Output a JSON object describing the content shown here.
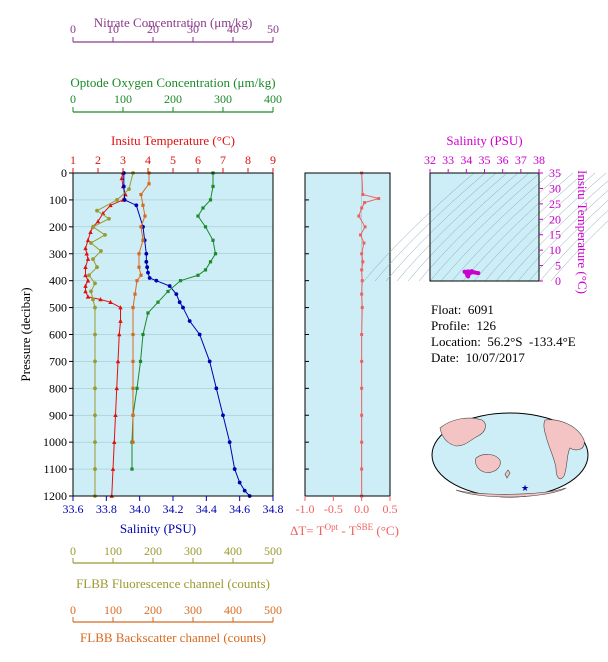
{
  "colors": {
    "nitrate": "#8b3a8b",
    "oxygen": "#1a8a2a",
    "temperature": "#e01010",
    "salinity": "#0000b0",
    "fluorescence": "#9a9a30",
    "backscatter": "#d86a20",
    "dt": "#f06060",
    "ts_axis": "#cc00cc",
    "panel_bg": "#cdeef6",
    "map_land": "#f4c4c4"
  },
  "info": {
    "float": "Float:  6091",
    "profile": "Profile:  126",
    "location": "Location:  56.2°S  -133.4°E",
    "date": "Date:  10/07/2017"
  },
  "chart_data": [
    {
      "type": "line",
      "panel": "main-profile",
      "ylabel": "Pressure (decibar)",
      "ylim": [
        1200,
        0
      ],
      "yticks": [
        0,
        100,
        200,
        300,
        400,
        500,
        600,
        700,
        800,
        900,
        1000,
        1100,
        1200
      ],
      "axes": [
        {
          "key": "nitrate",
          "label": "Nitrate Concentration (μm/kg)",
          "lim": [
            0,
            50
          ],
          "ticks": [
            "0",
            "10",
            "20",
            "30",
            "40",
            "50"
          ],
          "color": "#8b3a8b"
        },
        {
          "key": "oxygen",
          "label": "Optode Oxygen Concentration (μm/kg)",
          "lim": [
            0,
            400
          ],
          "ticks": [
            "0",
            "100",
            "200",
            "300",
            "400"
          ],
          "color": "#1a8a2a"
        },
        {
          "key": "temperature",
          "label": "Insitu Temperature (°C)",
          "lim": [
            1,
            9
          ],
          "ticks": [
            "1",
            "2",
            "3",
            "4",
            "5",
            "6",
            "7",
            "8",
            "9"
          ],
          "color": "#e01010"
        },
        {
          "key": "salinity",
          "label": "Salinity (PSU)",
          "lim": [
            33.6,
            34.8
          ],
          "ticks": [
            "33.6",
            "33.8",
            "34.0",
            "34.2",
            "34.4",
            "34.6",
            "34.8"
          ],
          "color": "#0000b0"
        },
        {
          "key": "fluorescence",
          "label": "FLBB Fluorescence channel (counts)",
          "lim": [
            0,
            500
          ],
          "ticks": [
            "0",
            "100",
            "200",
            "300",
            "400",
            "500"
          ],
          "color": "#9a9a30"
        },
        {
          "key": "backscatter",
          "label": "FLBB Backscatter channel (counts)",
          "lim": [
            0,
            500
          ],
          "ticks": [
            "0",
            "100",
            "200",
            "300",
            "400",
            "500"
          ],
          "color": "#d86a20"
        }
      ],
      "series": [
        {
          "key": "temperature",
          "x": [
            3.0,
            2.95,
            3.0,
            3.1,
            3.0,
            2.5,
            2.2,
            2.0,
            1.8,
            1.7,
            1.6,
            1.5,
            1.55,
            1.6,
            1.5,
            1.5,
            1.6,
            1.5,
            1.5,
            1.6,
            2.1,
            2.5,
            2.9,
            2.9,
            2.85,
            2.8,
            2.75,
            2.7,
            2.65,
            2.6,
            2.55
          ],
          "y": [
            0,
            20,
            50,
            80,
            100,
            120,
            150,
            180,
            200,
            220,
            250,
            280,
            300,
            320,
            350,
            380,
            400,
            420,
            440,
            460,
            470,
            480,
            500,
            550,
            600,
            700,
            800,
            900,
            1000,
            1100,
            1200
          ]
        },
        {
          "key": "salinity",
          "x": [
            33.905,
            33.905,
            33.91,
            33.98,
            34.02,
            34.03,
            34.04,
            34.04,
            34.045,
            34.05,
            34.06,
            34.1,
            34.18,
            34.22,
            34.24,
            34.26,
            34.3,
            34.36,
            34.42,
            34.46,
            34.5,
            34.54,
            34.57,
            34.6,
            34.63,
            34.66
          ],
          "y": [
            0,
            50,
            100,
            120,
            200,
            250,
            300,
            330,
            350,
            370,
            390,
            400,
            420,
            450,
            480,
            500,
            550,
            600,
            700,
            800,
            900,
            1000,
            1100,
            1150,
            1180,
            1200
          ]
        },
        {
          "key": "oxygen",
          "x": [
            280,
            280,
            275,
            260,
            250,
            265,
            280,
            285,
            275,
            265,
            250,
            215,
            190,
            170,
            150,
            140,
            135,
            128,
            120,
            118,
            118
          ],
          "y": [
            0,
            50,
            100,
            130,
            160,
            200,
            250,
            300,
            330,
            360,
            380,
            400,
            440,
            480,
            520,
            600,
            700,
            800,
            900,
            1000,
            1100
          ]
        },
        {
          "key": "fluorescence",
          "x": [
            150,
            140,
            110,
            60,
            90,
            50,
            80,
            45,
            70,
            50,
            60,
            40,
            55,
            45,
            50,
            55,
            55,
            55,
            55,
            55,
            55,
            55,
            55
          ],
          "y": [
            0,
            60,
            100,
            140,
            170,
            200,
            230,
            260,
            290,
            320,
            350,
            380,
            410,
            440,
            470,
            500,
            600,
            700,
            800,
            900,
            1000,
            1100,
            1200
          ]
        },
        {
          "key": "backscatter",
          "x": [
            190,
            190,
            170,
            175,
            180,
            170,
            175,
            165,
            165,
            170,
            160,
            155,
            150,
            150,
            150,
            150,
            150,
            150
          ],
          "y": [
            0,
            40,
            80,
            120,
            160,
            200,
            250,
            300,
            350,
            380,
            400,
            450,
            500,
            600,
            700,
            800,
            900,
            1000
          ]
        }
      ]
    },
    {
      "type": "line",
      "panel": "delta-t",
      "xlabel_parts": [
        "ΔT= T",
        "Opt",
        " - T",
        "SBE",
        " (°C)"
      ],
      "xlim": [
        -1.0,
        0.5
      ],
      "xticks": [
        "-1.0",
        "-0.5",
        "0.0",
        "0.5"
      ],
      "x": [
        0.0,
        0.02,
        0.3,
        0.05,
        0.0,
        -0.05,
        0.06,
        -0.02,
        0.04,
        0.0,
        0.02,
        0.0,
        0.01,
        0.0,
        0.01,
        0.0,
        0.0,
        0.0,
        0.0,
        0.0,
        0.0,
        0.0
      ],
      "y": [
        0,
        80,
        95,
        110,
        130,
        160,
        200,
        230,
        260,
        300,
        330,
        360,
        400,
        450,
        500,
        600,
        700,
        800,
        900,
        1000,
        1100,
        1200
      ]
    },
    {
      "type": "scatter",
      "panel": "ts-diagram",
      "xlabel": "Salinity (PSU)",
      "ylabel": "Insitu Temperature (°C)",
      "xlim": [
        32,
        38
      ],
      "ylim": [
        0,
        35
      ],
      "xticks": [
        "32",
        "33",
        "34",
        "35",
        "36",
        "37",
        "38"
      ],
      "yticks": [
        "0",
        "5",
        "10",
        "15",
        "20",
        "25",
        "30",
        "35"
      ],
      "points_x": [
        33.9,
        33.95,
        34.0,
        34.05,
        34.1,
        34.2,
        34.3,
        34.4,
        34.5,
        34.6,
        34.66,
        34.3,
        34.1
      ],
      "points_y": [
        3.0,
        3.0,
        2.5,
        1.8,
        1.5,
        2.5,
        2.8,
        2.8,
        2.7,
        2.6,
        2.55,
        3.2,
        3.1
      ]
    }
  ]
}
